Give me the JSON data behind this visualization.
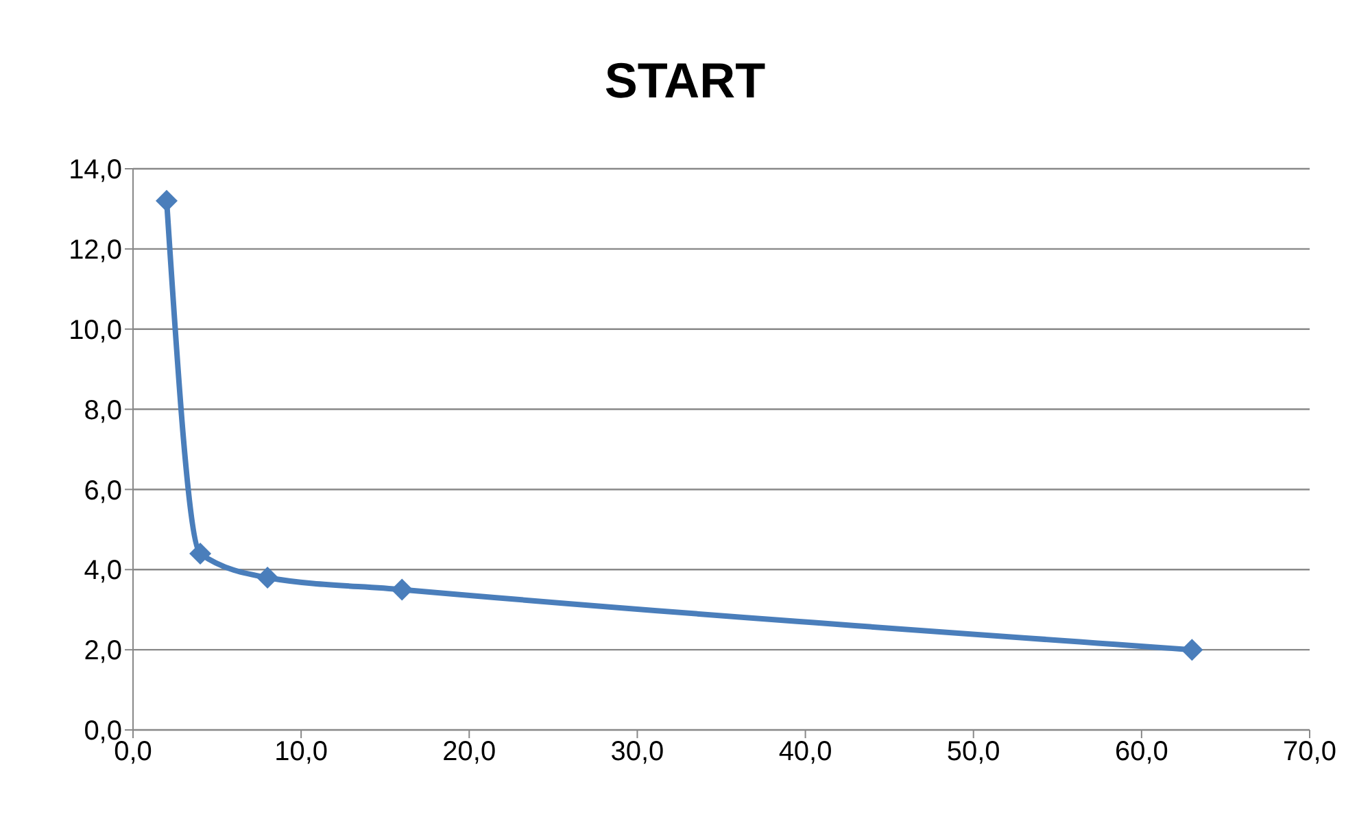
{
  "chart_data": {
    "type": "line",
    "title": "START",
    "x": [
      2,
      4,
      8,
      16,
      63
    ],
    "series": [
      {
        "color": "#4a7ebb",
        "values": [
          13.2,
          4.4,
          3.8,
          3.5,
          2.0
        ]
      }
    ],
    "xlim": [
      0,
      70
    ],
    "xticks": [
      {
        "value": 0,
        "label": "0,0"
      },
      {
        "value": 10,
        "label": "10,0"
      },
      {
        "value": 20,
        "label": "20,0"
      },
      {
        "value": 30,
        "label": "30,0"
      },
      {
        "value": 40,
        "label": "40,0"
      },
      {
        "value": 50,
        "label": "50,0"
      },
      {
        "value": 60,
        "label": "60,0"
      },
      {
        "value": 70,
        "label": "70,0"
      }
    ],
    "ylim": [
      0,
      14
    ],
    "yticks": [
      {
        "value": 0,
        "label": "0,0"
      },
      {
        "value": 2,
        "label": "2,0"
      },
      {
        "value": 4,
        "label": "4,0"
      },
      {
        "value": 6,
        "label": "6,0"
      },
      {
        "value": 8,
        "label": "8,0"
      },
      {
        "value": 10,
        "label": "10,0"
      },
      {
        "value": 12,
        "label": "12,0"
      },
      {
        "value": 14,
        "label": "14,0"
      }
    ],
    "grid": "y",
    "marker": "diamond",
    "line_style": "solid",
    "legend": false
  }
}
